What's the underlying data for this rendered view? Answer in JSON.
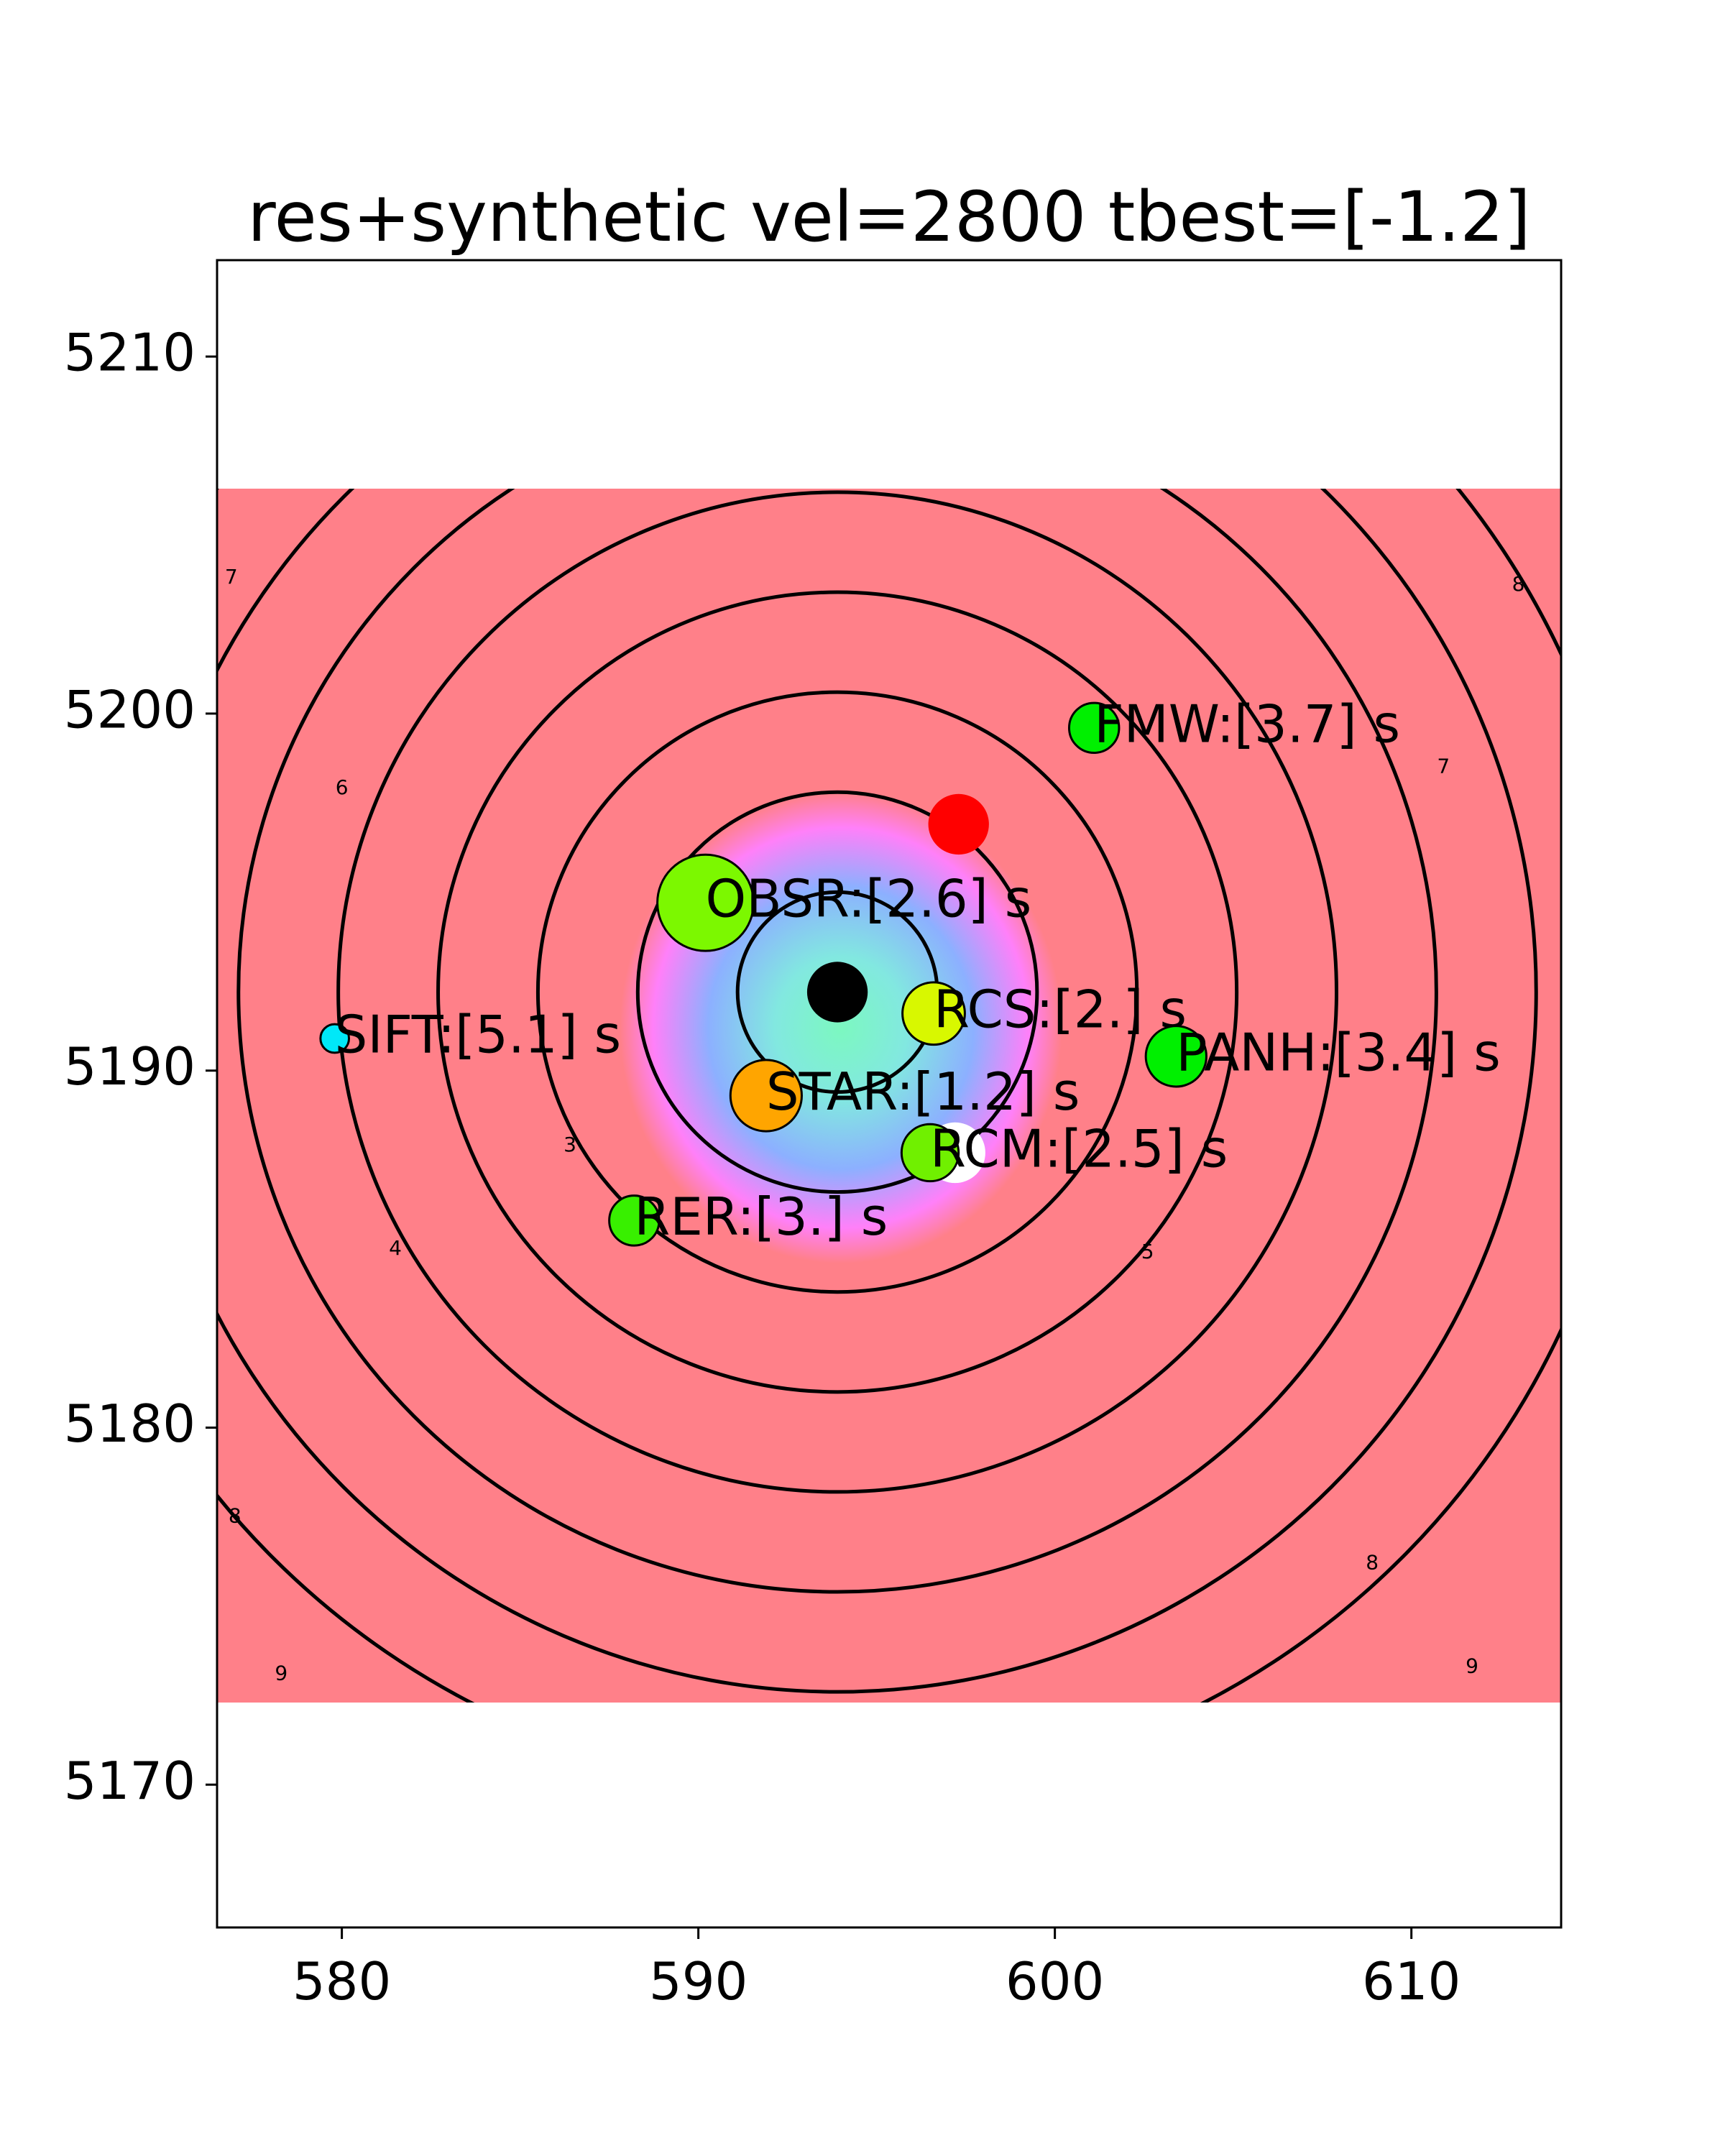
{
  "chart_data": {
    "type": "scatter",
    "title": "res+synthetic vel=2800 tbest=[-1.2]",
    "xlabel": "",
    "ylabel": "",
    "xlim": [
      576.5,
      614.2
    ],
    "ylim": [
      5166.0,
      5212.7
    ],
    "xticks": [
      580,
      590,
      600,
      610
    ],
    "yticks": [
      5170,
      5180,
      5190,
      5200,
      5210
    ],
    "grid": false,
    "background": {
      "color": "#ff8089",
      "x_range": [
        576.5,
        614.2
      ],
      "y_range": [
        5172.3,
        5206.3
      ]
    },
    "epicenter": {
      "x": 593.9,
      "y": 5192.2,
      "color": "#000000"
    },
    "contours": {
      "center": {
        "x": 593.9,
        "y": 5192.2
      },
      "levels": [
        2,
        3,
        4,
        5,
        6,
        7,
        8,
        9
      ],
      "radii": [
        2.8,
        5.6,
        8.4,
        11.2,
        14.0,
        16.8,
        19.6,
        22.4
      ],
      "labeled_levels": [
        {
          "text": "3",
          "x": 586.4,
          "y": 5187.9
        },
        {
          "text": "4",
          "x": 581.5,
          "y": 5185.0
        },
        {
          "text": "5",
          "x": 602.6,
          "y": 5184.9
        },
        {
          "text": "6",
          "x": 580.0,
          "y": 5197.9
        },
        {
          "text": "7",
          "x": 576.9,
          "y": 5203.8
        },
        {
          "text": "7",
          "x": 610.9,
          "y": 5198.5
        },
        {
          "text": "8",
          "x": 613.0,
          "y": 5203.6
        },
        {
          "text": "8",
          "x": 577.0,
          "y": 5177.5
        },
        {
          "text": "8",
          "x": 608.9,
          "y": 5176.2
        },
        {
          "text": "9",
          "x": 578.3,
          "y": 5173.1
        },
        {
          "text": "9",
          "x": 611.7,
          "y": 5173.3
        }
      ]
    },
    "residual_blob": {
      "center": {
        "x": 594.0,
        "y": 5191.2
      },
      "colors": [
        "#7cf8c0",
        "#8cb0ff",
        "#ff80ff"
      ]
    },
    "extra_markers": [
      {
        "x": 597.3,
        "y": 5196.9,
        "color": "#ff0000"
      },
      {
        "x": 597.2,
        "y": 5187.7,
        "color": "#ffffff"
      }
    ],
    "stations": [
      {
        "name": "OBSR:[2.6] s",
        "x": 590.2,
        "y": 5194.7,
        "size": 2.7,
        "color": "#7cf800"
      },
      {
        "name": "FMW:[3.7] s",
        "x": 601.1,
        "y": 5199.6,
        "size": 1.4,
        "color": "#00f000"
      },
      {
        "name": "SIFT:[5.1] s",
        "x": 579.8,
        "y": 5190.9,
        "size": 0.8,
        "color": "#00e8f8"
      },
      {
        "name": "RCS:[2.] s",
        "x": 596.6,
        "y": 5191.6,
        "size": 1.75,
        "color": "#d8f800"
      },
      {
        "name": "PANH:[3.4] s",
        "x": 603.4,
        "y": 5190.4,
        "size": 1.7,
        "color": "#00f000"
      },
      {
        "name": "STAR:[1.2] s",
        "x": 591.9,
        "y": 5189.3,
        "size": 2.0,
        "color": "#ffa500"
      },
      {
        "name": "RCM:[2.5] s",
        "x": 596.5,
        "y": 5187.7,
        "size": 1.6,
        "color": "#70f000"
      },
      {
        "name": "RER:[3.] s",
        "x": 588.2,
        "y": 5185.8,
        "size": 1.4,
        "color": "#38f000"
      }
    ]
  }
}
